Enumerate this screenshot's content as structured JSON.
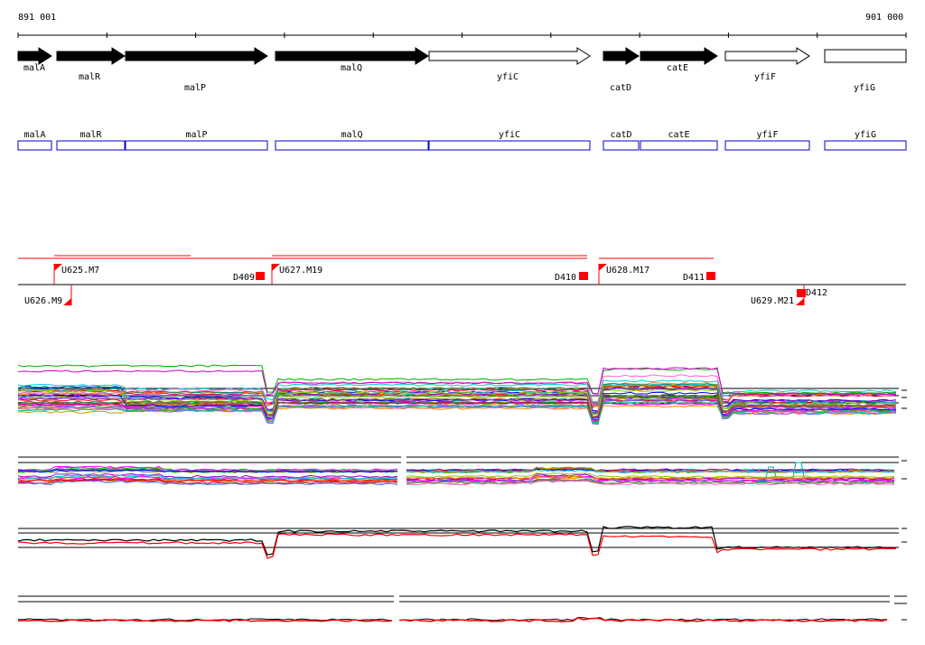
{
  "coordinates": {
    "start": "891 001",
    "end": "901 000"
  },
  "colors": {
    "gene_filled": "#000000",
    "gene_open": "#ffffff",
    "annotation_box": "#0000cc",
    "probe": "#ff0000",
    "axis": "#000000"
  },
  "genes": [
    {
      "name": "malA",
      "filled": true
    },
    {
      "name": "malR",
      "filled": true
    },
    {
      "name": "malP",
      "filled": true
    },
    {
      "name": "malQ",
      "filled": true
    },
    {
      "name": "yfiC",
      "filled": false
    },
    {
      "name": "catD",
      "filled": true
    },
    {
      "name": "catE",
      "filled": true
    },
    {
      "name": "yfiF",
      "filled": false
    },
    {
      "name": "yfiG",
      "filled": false
    }
  ],
  "annotations": [
    {
      "name": "malA"
    },
    {
      "name": "malR"
    },
    {
      "name": "malP"
    },
    {
      "name": "malQ"
    },
    {
      "name": "yfiC"
    },
    {
      "name": "catD"
    },
    {
      "name": "catE"
    },
    {
      "name": "yfiF"
    },
    {
      "name": "yfiG"
    }
  ],
  "upstream_features": [
    {
      "label": "U625.M7"
    },
    {
      "label": "U627.M19"
    },
    {
      "label": "U628.M17"
    },
    {
      "label": "U626.M9"
    },
    {
      "label": "U629.M21"
    }
  ],
  "downstream_features": [
    {
      "label": "D409"
    },
    {
      "label": "D410"
    },
    {
      "label": "D411"
    },
    {
      "label": "D412"
    }
  ]
}
